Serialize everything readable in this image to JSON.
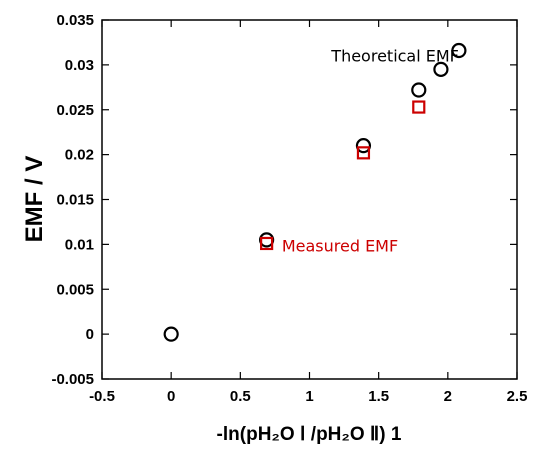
{
  "chart_data": {
    "type": "scatter",
    "xlabel": "-ln(pH₂O Ⅰ /pH₂O Ⅱ) 1",
    "ylabel": "EMF / V",
    "xlim": [
      -0.5,
      2.5
    ],
    "ylim": [
      -0.005,
      0.035
    ],
    "x_ticks": [
      -0.5,
      0,
      0.5,
      1,
      1.5,
      2,
      2.5
    ],
    "x_tick_labels": [
      "-0.5",
      "0",
      "0.5",
      "1",
      "1.5",
      "2",
      "2.5"
    ],
    "y_ticks": [
      -0.005,
      0,
      0.005,
      0.01,
      0.015,
      0.02,
      0.025,
      0.03,
      0.035
    ],
    "y_tick_labels": [
      "-0.005",
      "0",
      "0.005",
      "0.01",
      "0.015",
      "0.02",
      "0.025",
      "0.03",
      "0.035"
    ],
    "grid": false,
    "legend": "none",
    "series": [
      {
        "name": "Theoretical EMF",
        "marker": "circle",
        "color": "#000000",
        "x": [
          0,
          0.69,
          1.39,
          1.79,
          1.95,
          2.08
        ],
        "y": [
          0,
          0.0105,
          0.021,
          0.0272,
          0.0295,
          0.0316
        ]
      },
      {
        "name": "Measured EMF",
        "marker": "square",
        "color": "#cc0000",
        "x": [
          0.69,
          1.39,
          1.79
        ],
        "y": [
          0.0101,
          0.0202,
          0.0253
        ]
      }
    ],
    "annotations": [
      {
        "text": "Theoretical EMF",
        "x": 2.08,
        "y": 0.0304,
        "color": "#000000"
      },
      {
        "text": "Measured EMF",
        "x": 0.8,
        "y": 0.0092,
        "color": "#cc0000"
      }
    ]
  }
}
